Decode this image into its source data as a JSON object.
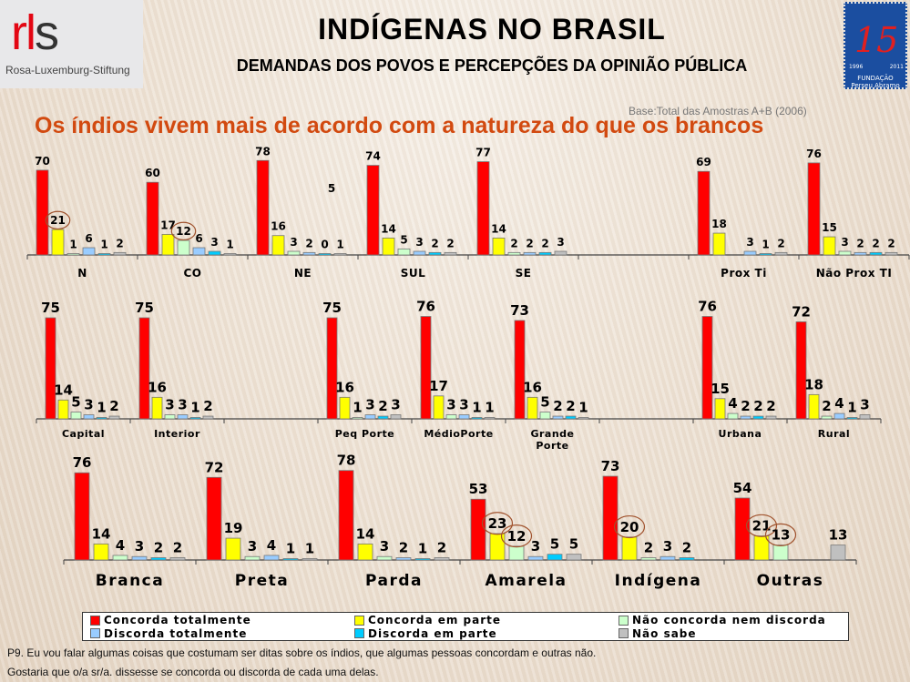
{
  "header": {
    "title": "INDÍGENAS NO BRASIL",
    "subtitle": "DEMANDAS DOS POVOS E PERCEPÇÕES DA OPINIÃO PÚBLICA",
    "logo_left": {
      "mark_r": "rl",
      "mark_s": "s",
      "name": "Rosa-Luxemburg-Stiftung"
    },
    "logo_right": {
      "number": "15",
      "year_start": "1996",
      "year_end": "2011",
      "name": "FUNDAÇÃO Perseu Abramo"
    }
  },
  "base_note": "Base:Total das Amostras A+B (2006)",
  "question_title": "Os índios vivem mais de acordo com a natureza do que os brancos",
  "legend": [
    {
      "label": "Concorda totalmente",
      "color": "#ff0000"
    },
    {
      "label": "Concorda em parte",
      "color": "#ffff00"
    },
    {
      "label": "Não concorda nem discorda",
      "color": "#ccffcc"
    },
    {
      "label": "Discorda totalmente",
      "color": "#99ccff"
    },
    {
      "label": "Discorda em parte",
      "color": "#00ccff"
    },
    {
      "label": "Não sabe",
      "color": "#c0c0c0"
    }
  ],
  "footnote": [
    "P9. Eu vou falar algumas coisas que costumam ser ditas sobre os índios, que algumas pessoas concordam e outras não.",
    "Gostaria que o/a sr/a. dissesse se concorda ou discorda de cada  uma delas."
  ],
  "chart_data": [
    {
      "type": "bar",
      "series_names": [
        "Concorda totalmente",
        "Concorda em parte",
        "Não concorda nem discorda",
        "Discorda totalmente",
        "Discorda em parte",
        "Não sabe"
      ],
      "categories": [
        "N",
        "CO",
        "NE",
        "SUL",
        "SE",
        "",
        "Prox Ti",
        "Não Prox TI"
      ],
      "values": [
        [
          70,
          21,
          1,
          6,
          1,
          2
        ],
        [
          60,
          17,
          12,
          6,
          3,
          1
        ],
        [
          78,
          16,
          3,
          2,
          0,
          1
        ],
        [
          74,
          14,
          5,
          3,
          2,
          2
        ],
        [
          77,
          14,
          2,
          2,
          2,
          3
        ],
        null,
        [
          69,
          18,
          null,
          3,
          1,
          2
        ],
        [
          76,
          15,
          3,
          2,
          2,
          2
        ]
      ],
      "highlighted": [
        [
          0,
          1
        ],
        [
          1,
          2
        ]
      ],
      "annotations": [
        {
          "category": "NE",
          "text": "5"
        }
      ],
      "unit": "%"
    },
    {
      "type": "bar",
      "series_names": [
        "Concorda totalmente",
        "Concorda em parte",
        "Não concorda nem discorda",
        "Discorda totalmente",
        "Discorda em parte",
        "Não sabe"
      ],
      "categories": [
        "Capital",
        "Interior",
        "",
        "Peq Porte",
        "MédioPorte",
        "Grande Porte",
        "",
        "Urbana",
        "Rural"
      ],
      "values": [
        [
          75,
          14,
          5,
          3,
          1,
          2
        ],
        [
          75,
          16,
          3,
          3,
          1,
          2
        ],
        null,
        [
          75,
          16,
          1,
          3,
          2,
          3
        ],
        [
          76,
          17,
          3,
          3,
          1,
          1
        ],
        [
          73,
          16,
          5,
          2,
          2,
          1
        ],
        null,
        [
          76,
          15,
          4,
          2,
          2,
          2
        ],
        [
          72,
          18,
          2,
          4,
          1,
          3
        ]
      ],
      "highlighted": [],
      "unit": "%"
    },
    {
      "type": "bar",
      "series_names": [
        "Concorda totalmente",
        "Concorda em parte",
        "Não concorda nem discorda",
        "Discorda totalmente",
        "Discorda em parte",
        "Não sabe"
      ],
      "categories": [
        "Branca",
        "Preta",
        "Parda",
        "Amarela",
        "Indígena",
        "Outras"
      ],
      "values": [
        [
          76,
          14,
          4,
          3,
          2,
          2
        ],
        [
          72,
          19,
          3,
          4,
          1,
          1
        ],
        [
          78,
          14,
          3,
          2,
          1,
          2
        ],
        [
          53,
          23,
          12,
          3,
          5,
          5
        ],
        [
          73,
          20,
          2,
          3,
          2,
          null
        ],
        [
          54,
          21,
          13,
          null,
          null,
          13
        ]
      ],
      "highlighted": [
        [
          3,
          1
        ],
        [
          3,
          2
        ],
        [
          4,
          1
        ],
        [
          5,
          1
        ],
        [
          5,
          2
        ]
      ],
      "unit": "%"
    }
  ]
}
